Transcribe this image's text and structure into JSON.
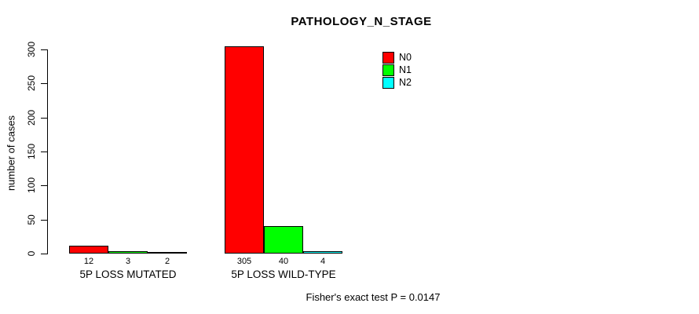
{
  "chart_data": {
    "type": "bar",
    "title": "PATHOLOGY_N_STAGE",
    "categories": [
      "5P LOSS MUTATED",
      "5P LOSS WILD-TYPE"
    ],
    "series": [
      {
        "name": "N0",
        "color": "#FF0000",
        "values": [
          12,
          305
        ]
      },
      {
        "name": "N1",
        "color": "#00FF00",
        "values": [
          3,
          40
        ]
      },
      {
        "name": "N2",
        "color": "#00FFFF",
        "values": [
          2,
          4
        ]
      }
    ],
    "xlabel": "",
    "ylabel": "number of cases",
    "ylim": [
      0,
      300
    ],
    "yticks": [
      0,
      50,
      100,
      150,
      200,
      250,
      300
    ],
    "grid": false,
    "bar_value_labels_shown": true,
    "legend_position": "top-right",
    "legend_entries": [
      "N0",
      "N1",
      "N2"
    ],
    "annotation": "Fisher's exact test P = 0.0147",
    "colors": {
      "background": "#FFFFFF",
      "axis": "#000000",
      "text": "#000000"
    }
  }
}
